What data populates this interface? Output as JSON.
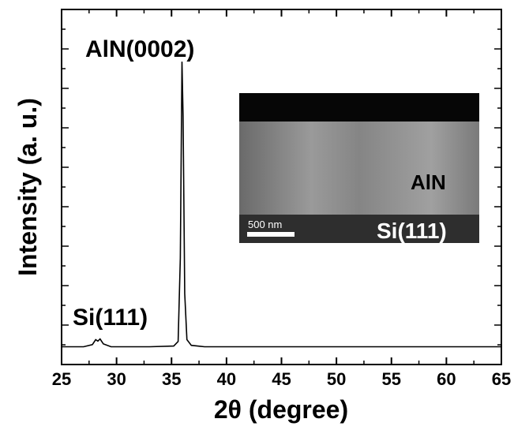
{
  "chart_data": {
    "type": "line",
    "xlabel": "2θ (degree)",
    "ylabel": "Intensity (a. u.)",
    "x": [
      25,
      27,
      27.8,
      28.1,
      28.3,
      28.5,
      28.8,
      29.5,
      33,
      35.2,
      35.6,
      35.8,
      35.95,
      36.05,
      36.2,
      36.4,
      36.8,
      38,
      45,
      55,
      65
    ],
    "values": [
      5,
      5,
      5.6,
      7,
      6.6,
      7.2,
      5.8,
      5,
      5,
      5.2,
      6.5,
      30,
      85.3,
      70,
      20,
      7,
      5.4,
      5,
      5,
      5,
      5
    ],
    "color": "#000000",
    "xlim": [
      25,
      65
    ],
    "xticks": [
      25,
      30,
      35,
      40,
      45,
      50,
      55,
      60,
      65
    ],
    "ylim": [
      0,
      100
    ],
    "annotations": [
      "AlN(0002)",
      "Si(111)"
    ],
    "inset": {
      "label_top": "AlN",
      "label_bottom": "Si(111)",
      "scale_bar": "500 nm"
    }
  }
}
